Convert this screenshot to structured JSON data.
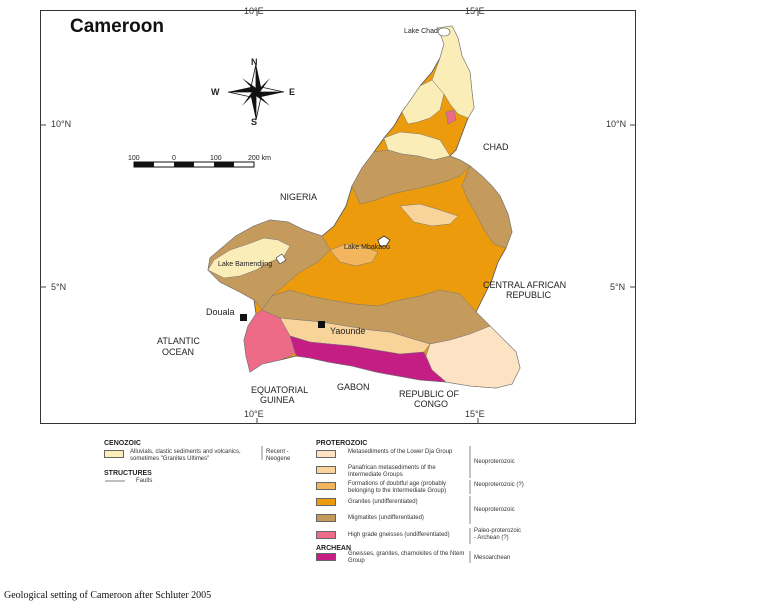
{
  "map": {
    "title": "Cameroon",
    "coords": {
      "top_10e": "10°E",
      "top_15e": "15°E",
      "bottom_10e": "10°E",
      "bottom_15e": "15°E",
      "left_10n": "10°N",
      "right_10n": "10°N",
      "left_5n": "5°N",
      "right_5n": "5°N"
    },
    "compass": {
      "n": "N",
      "s": "S",
      "e": "E",
      "w": "W"
    },
    "scale": {
      "t0": "100",
      "t1": "0",
      "t2": "100",
      "t3": "200 km"
    },
    "places": {
      "lake_chad": "Lake Chad",
      "chad": "CHAD",
      "nigeria": "NIGERIA",
      "lake_mbakaou": "Lake Mbakaou",
      "lake_bamendjing": "Lake Bamendjing",
      "car_line1": "CENTRAL AFRICAN",
      "car_line2": "REPUBLIC",
      "douala": "Douala",
      "yaounde": "Yaounde",
      "atlantic_line1": "ATLANTIC",
      "atlantic_line2": "OCEAN",
      "eq_guinea_line1": "EQUATORIAL",
      "eq_guinea_line2": "GUINEA",
      "gabon": "GABON",
      "congo_line1": "REPUBLIC OF",
      "congo_line2": "CONGO"
    },
    "colors": {
      "cenozoic": "#fbedb7",
      "lower_dja": "#fde3c3",
      "intermediate": "#f8d49b",
      "doubtful": "#f3b65e",
      "granites": "#eb9b0c",
      "migmatites": "#c49a5d",
      "high_grade": "#ee6b88",
      "ntem": "#c41e85"
    }
  },
  "legend": {
    "cenozoic": {
      "heading": "CENOZOIC",
      "item_label": "Alluvials, clastic sediments and volcanics, sometimes \"Granites Ultimes\"",
      "age": "Recent - Neogene"
    },
    "structures": {
      "heading": "STRUCTURES",
      "faults": "Faults"
    },
    "proterozoic": {
      "heading": "PROTEROZOIC",
      "items": [
        {
          "label": "Metasediments of the Lower Dja Group"
        },
        {
          "label": "Panafrican metasediments of the Intermediate Groups"
        },
        {
          "label": "Formations of doubtful age (probably belonging to the Intermediate Group)"
        },
        {
          "label": "Granites (undifferentiated)"
        },
        {
          "label": "Migmatites (undifferentiated)"
        },
        {
          "label": "High grade gneisses (undifferentiated)"
        }
      ],
      "ages": [
        "Neoproterozoic",
        "Neoproterozoic (?)",
        "Neoproterozoic",
        "Paleo-proterozoic - Archean (?)"
      ]
    },
    "archean": {
      "heading": "ARCHEAN",
      "item_label": "Gneisses, granites, charnokites of the Ntem Group",
      "age": "Mesoarchean"
    }
  },
  "caption": "Geological setting of Cameroon after Schluter 2005"
}
